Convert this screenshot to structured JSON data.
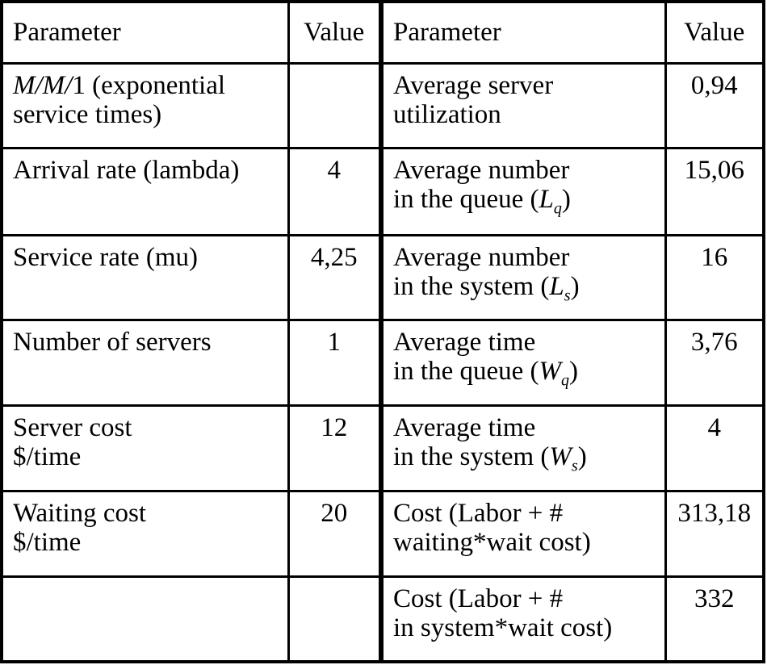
{
  "headers": {
    "left_param": "Parameter",
    "left_value": "Value",
    "right_param": "Parameter",
    "right_value": "Value"
  },
  "inputs": [
    {
      "param_italic": "M/M/",
      "param_rest": "1 (exponential",
      "param_line2": "service times)",
      "value": ""
    },
    {
      "param": "Arrival rate (lambda)",
      "value": "4"
    },
    {
      "param": "Service rate (mu)",
      "value": "4,25"
    },
    {
      "param": "Number of servers",
      "value": "1"
    },
    {
      "param_line1": "Server cost",
      "param_line2": "$/time",
      "value": "12"
    },
    {
      "param_line1": "Waiting cost",
      "param_line2": "$/time",
      "value": "20"
    },
    {
      "param": "",
      "value": ""
    }
  ],
  "outputs": [
    {
      "line1": "Average server",
      "line2": "utilization",
      "value": "0,94"
    },
    {
      "line1": "Average number",
      "line2": "in the queue (",
      "symbol": "L",
      "sub": "q",
      "close": ")",
      "value": "15,06"
    },
    {
      "line1": "Average number",
      "line2": "in the system (",
      "symbol": "L",
      "sub": "s",
      "close": ")",
      "value": "16"
    },
    {
      "line1": "Average time",
      "line2": "in the queue (",
      "symbol": "W",
      "sub": "q",
      "close": ")",
      "value": "3,76"
    },
    {
      "line1": "Average time",
      "line2": "in the system (",
      "symbol": "W",
      "sub": "s",
      "close": ")",
      "value": "4"
    },
    {
      "line1": "Cost (Labor + #",
      "line2": "waiting*wait cost)",
      "value": "313,18"
    },
    {
      "line1": "Cost (Labor + #",
      "line2": "in system*wait cost)",
      "value": "332"
    }
  ]
}
